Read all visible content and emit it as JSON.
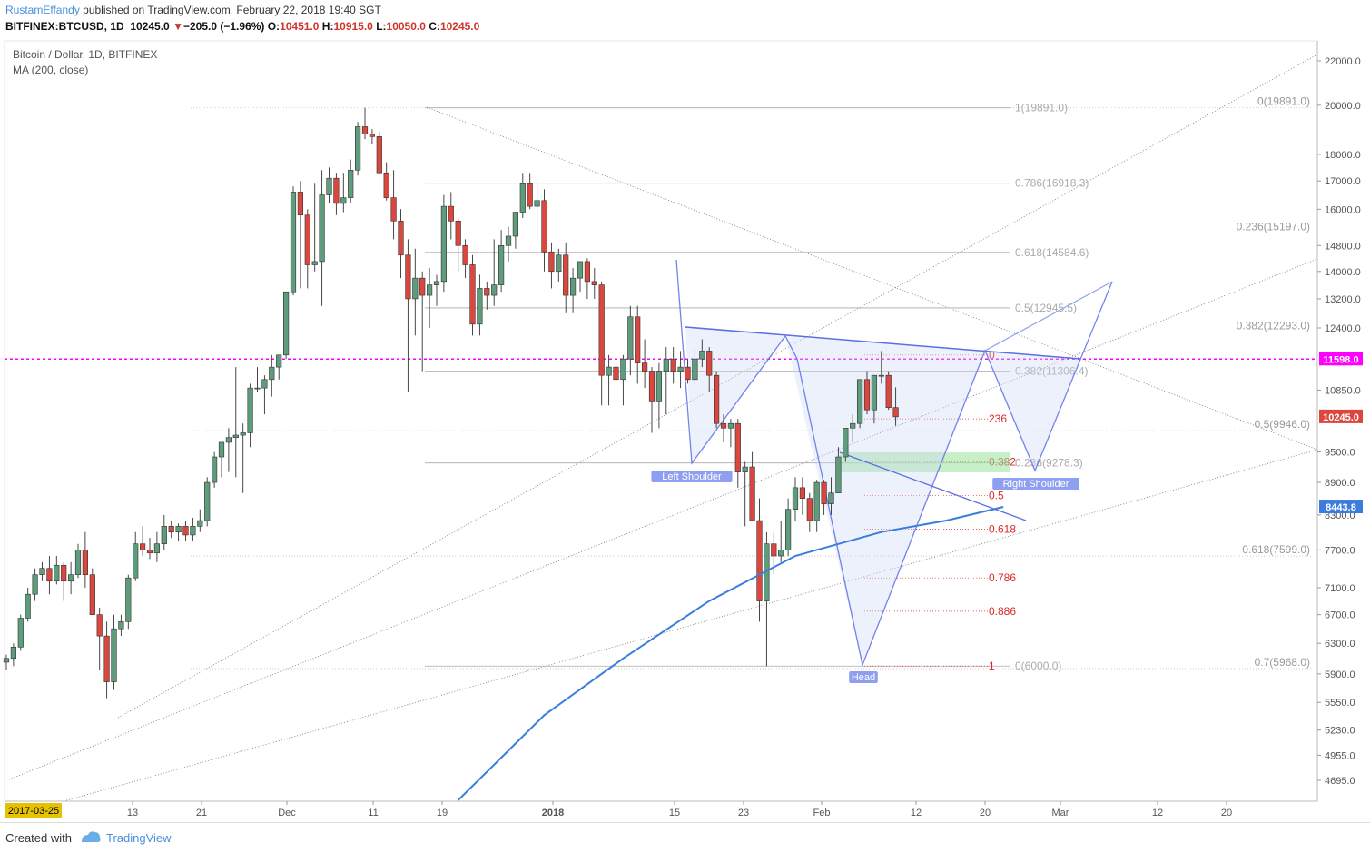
{
  "header": {
    "user": "RustamEffandy",
    "published": " published on TradingView.com, February 22, 2018 19:40 SGT",
    "symbol": "BITFINEX:BTCUSD, 1D",
    "last": "10245.0",
    "change": "−205.0 (−1.96%)",
    "o_label": "O:",
    "o_value": "10451.0",
    "h_label": "H:",
    "h_value": "10915.0",
    "l_label": "L:",
    "l_value": "10050.0",
    "c_label": "C:",
    "c_value": "10245.0"
  },
  "legend": {
    "title": "Bitcoin / Dollar, 1D, BITFINEX",
    "indicator": "MA (200, close)"
  },
  "footer": {
    "created": "Created with",
    "brand": "TradingView"
  },
  "colors": {
    "up": "#5f9c7c",
    "down": "#d9473e",
    "ma": "#3b7ddd",
    "pattern": "#5b6ee8",
    "alert": "#ff00ff",
    "fib_grey": "#aaaaaa",
    "fib_red": "#d92a2a"
  },
  "chart_data": {
    "type": "candlestick",
    "date_range": [
      "2017-10-06",
      "2018-02-22"
    ],
    "x_ticks": [
      "13",
      "21",
      "Dec",
      "11",
      "19",
      "2018",
      "15",
      "23",
      "Feb",
      "12",
      "20",
      "Mar",
      "12",
      "20"
    ],
    "date_badge": "2017-03-25",
    "y_ticks": [
      "22000.0",
      "20000.0",
      "18000.0",
      "17000.0",
      "16000.0",
      "14800.0",
      "14000.0",
      "13200.0",
      "12400.0",
      "10850.0",
      "9500.0",
      "8900.0",
      "8300.0",
      "7700.0",
      "7100.0",
      "6700.0",
      "6300.0",
      "5900.0",
      "5550.0",
      "5230.0",
      "4955.0",
      "4695.0"
    ],
    "ylim": [
      4500,
      22800
    ],
    "scale": "log",
    "price_badges": [
      {
        "label": "11598.0",
        "value": 11598,
        "color": "#ff00ff"
      },
      {
        "label": "10245.0",
        "value": 10245,
        "color": "#d9473e"
      },
      {
        "label": "8443.8",
        "value": 8443.8,
        "color": "#3b7ddd"
      }
    ],
    "ohlc": [
      [
        6050,
        6150,
        5950,
        6100
      ],
      [
        6100,
        6300,
        6000,
        6250
      ],
      [
        6250,
        6700,
        6200,
        6650
      ],
      [
        6650,
        7100,
        6600,
        7000
      ],
      [
        7000,
        7400,
        6900,
        7300
      ],
      [
        7300,
        7500,
        7200,
        7400
      ],
      [
        7400,
        7600,
        7000,
        7200
      ],
      [
        7200,
        7600,
        7150,
        7450
      ],
      [
        7450,
        7500,
        6900,
        7200
      ],
      [
        7200,
        7500,
        7000,
        7300
      ],
      [
        7300,
        7800,
        7250,
        7700
      ],
      [
        7700,
        8000,
        7100,
        7300
      ],
      [
        7300,
        7400,
        6800,
        6700
      ],
      [
        6700,
        6800,
        5950,
        6400
      ],
      [
        6400,
        6600,
        5600,
        5800
      ],
      [
        5800,
        6700,
        5700,
        6500
      ],
      [
        6500,
        6700,
        6400,
        6600
      ],
      [
        6600,
        7300,
        6500,
        7250
      ],
      [
        7250,
        8000,
        7200,
        7800
      ],
      [
        7800,
        8100,
        7600,
        7700
      ],
      [
        7700,
        7900,
        7550,
        7650
      ],
      [
        7650,
        8000,
        7500,
        7800
      ],
      [
        7800,
        8300,
        7700,
        8100
      ],
      [
        8100,
        8200,
        7900,
        8000
      ],
      [
        8000,
        8150,
        7850,
        8100
      ],
      [
        8100,
        8200,
        7850,
        7950
      ],
      [
        7950,
        8250,
        7850,
        8100
      ],
      [
        8100,
        8400,
        8000,
        8200
      ],
      [
        8200,
        9000,
        8100,
        8900
      ],
      [
        8900,
        9500,
        8800,
        9400
      ],
      [
        9400,
        9700,
        9000,
        9700
      ],
      [
        9700,
        10000,
        9100,
        9800
      ],
      [
        9800,
        11400,
        9000,
        9850
      ],
      [
        9850,
        10100,
        8700,
        9900
      ],
      [
        9900,
        11000,
        9600,
        10900
      ],
      [
        10900,
        11400,
        10800,
        10900
      ],
      [
        10900,
        11200,
        10300,
        11100
      ],
      [
        11100,
        11700,
        10700,
        11400
      ],
      [
        11400,
        11700,
        11100,
        11700
      ],
      [
        11700,
        13300,
        11600,
        13400
      ],
      [
        13400,
        16800,
        13300,
        16600
      ],
      [
        16600,
        17000,
        13500,
        15800
      ],
      [
        15800,
        16000,
        13500,
        14200
      ],
      [
        14200,
        16900,
        14000,
        14300
      ],
      [
        14300,
        17400,
        13000,
        16500
      ],
      [
        16500,
        17500,
        16200,
        17100
      ],
      [
        17100,
        17300,
        15800,
        16200
      ],
      [
        16200,
        17300,
        15900,
        16400
      ],
      [
        16400,
        17800,
        16200,
        17400
      ],
      [
        17400,
        19300,
        17200,
        19100
      ],
      [
        19100,
        19891,
        18600,
        18800
      ],
      [
        18800,
        19000,
        18400,
        18700
      ],
      [
        18700,
        18900,
        17300,
        17300
      ],
      [
        17300,
        17700,
        16300,
        16400
      ],
      [
        16400,
        17400,
        15000,
        15600
      ],
      [
        15600,
        16000,
        13800,
        14500
      ],
      [
        14500,
        15000,
        10800,
        13200
      ],
      [
        13200,
        14700,
        12200,
        13800
      ],
      [
        13800,
        14000,
        11300,
        13300
      ],
      [
        13300,
        14100,
        12400,
        13600
      ],
      [
        13600,
        13900,
        13000,
        13700
      ],
      [
        13700,
        16500,
        13400,
        16100
      ],
      [
        16100,
        16600,
        15000,
        15600
      ],
      [
        15600,
        15700,
        14000,
        14800
      ],
      [
        14800,
        15000,
        13800,
        14200
      ],
      [
        14200,
        14500,
        12200,
        12500
      ],
      [
        12500,
        13900,
        12200,
        13500
      ],
      [
        13500,
        13700,
        12900,
        13300
      ],
      [
        13300,
        15000,
        13000,
        13600
      ],
      [
        13600,
        15300,
        13400,
        14800
      ],
      [
        14800,
        15400,
        14300,
        15100
      ],
      [
        15100,
        15900,
        14700,
        15900
      ],
      [
        15900,
        17300,
        15700,
        16900
      ],
      [
        16900,
        17300,
        16000,
        16100
      ],
      [
        16100,
        17100,
        15000,
        16300
      ],
      [
        16300,
        16700,
        14000,
        14600
      ],
      [
        14600,
        14900,
        13500,
        14000
      ],
      [
        14000,
        14700,
        13700,
        14500
      ],
      [
        14500,
        14900,
        12800,
        13300
      ],
      [
        13300,
        14100,
        12800,
        13800
      ],
      [
        13800,
        14300,
        13400,
        14300
      ],
      [
        14300,
        14400,
        13200,
        13700
      ],
      [
        13700,
        14100,
        13200,
        13600
      ],
      [
        13600,
        13700,
        10500,
        11200
      ],
      [
        11200,
        11700,
        10500,
        11400
      ],
      [
        11400,
        11500,
        10800,
        11100
      ],
      [
        11100,
        11700,
        10500,
        11600
      ],
      [
        11600,
        13000,
        11200,
        12700
      ],
      [
        12700,
        13000,
        11000,
        11500
      ],
      [
        11500,
        12100,
        10900,
        11300
      ],
      [
        11300,
        11400,
        9900,
        10600
      ],
      [
        10600,
        11500,
        10000,
        11300
      ],
      [
        11300,
        11900,
        10300,
        11600
      ],
      [
        11600,
        11900,
        11000,
        11300
      ],
      [
        11300,
        11800,
        10900,
        11400
      ],
      [
        11400,
        11600,
        11000,
        11100
      ],
      [
        11100,
        11900,
        11000,
        11600
      ],
      [
        11600,
        12100,
        11400,
        11800
      ],
      [
        11800,
        11900,
        10800,
        11200
      ],
      [
        11200,
        11300,
        10000,
        10100
      ],
      [
        10100,
        10300,
        9700,
        10000
      ],
      [
        10000,
        10200,
        9600,
        10100
      ],
      [
        10100,
        10200,
        8800,
        9100
      ],
      [
        9100,
        9300,
        8100,
        9200
      ],
      [
        9200,
        9500,
        8200,
        8200
      ],
      [
        8200,
        8600,
        6600,
        6900
      ],
      [
        6900,
        8000,
        6000,
        7800
      ],
      [
        7800,
        8000,
        7300,
        7600
      ],
      [
        7600,
        8200,
        7500,
        7700
      ],
      [
        7700,
        8600,
        7600,
        8400
      ],
      [
        8400,
        9000,
        8200,
        8800
      ],
      [
        8800,
        9000,
        8300,
        8600
      ],
      [
        8600,
        8700,
        8000,
        8200
      ],
      [
        8200,
        8950,
        8000,
        8900
      ],
      [
        8900,
        8950,
        8300,
        8500
      ],
      [
        8500,
        9000,
        8300,
        8700
      ],
      [
        8700,
        9600,
        8700,
        9400
      ],
      [
        9400,
        10000,
        9300,
        10000
      ],
      [
        10000,
        10300,
        9700,
        10100
      ],
      [
        10100,
        11100,
        10000,
        11100
      ],
      [
        11100,
        11300,
        10300,
        10400
      ],
      [
        10400,
        11200,
        10100,
        11200
      ],
      [
        11200,
        11800,
        11000,
        11200
      ],
      [
        11200,
        11300,
        10400,
        10450
      ],
      [
        10451,
        10915,
        10050,
        10245
      ]
    ],
    "ma_200": [
      {
        "date": "2017-12-08",
        "value": 4500
      },
      {
        "date": "2017-12-20",
        "value": 5400
      },
      {
        "date": "2017-12-31",
        "value": 6100
      },
      {
        "date": "2018-01-12",
        "value": 6900
      },
      {
        "date": "2018-01-24",
        "value": 7600
      },
      {
        "date": "2018-02-05",
        "value": 8000
      },
      {
        "date": "2018-02-14",
        "value": 8200
      },
      {
        "date": "2018-02-22",
        "value": 8443.8
      }
    ],
    "fib_grey_main": [
      {
        "label": "0(19891.0)",
        "value": 19891
      },
      {
        "label": "0.236(15197.0)",
        "value": 15197
      },
      {
        "label": "0.382(12293.0)",
        "value": 12293
      },
      {
        "label": "0.5(9946.0)",
        "value": 9946
      },
      {
        "label": "0.618(7599.0)",
        "value": 7599
      },
      {
        "label": "0.7(5968.0)",
        "value": 5968
      }
    ],
    "fib_grey_retrace": [
      {
        "label": "1(19891.0)",
        "value": 19891
      },
      {
        "label": "0.786(16918.3)",
        "value": 16918.3
      },
      {
        "label": "0.618(14584.6)",
        "value": 14584.6
      },
      {
        "label": "0.5(12945.5)",
        "value": 12945.5
      },
      {
        "label": "0.382(11306.4)",
        "value": 11306.4
      },
      {
        "label": "0.236(9278.3)",
        "value": 9278.3
      },
      {
        "label": "0(6000.0)",
        "value": 6000
      }
    ],
    "fib_red": [
      {
        "label": "0",
        "value": 11700
      },
      {
        "label": "236",
        "value": 10200
      },
      {
        "label": "0.382",
        "value": 9300
      },
      {
        "label": "0.5",
        "value": 8650
      },
      {
        "label": "0.618",
        "value": 8050
      },
      {
        "label": "0.786",
        "value": 7250
      },
      {
        "label": "0.886",
        "value": 6750
      },
      {
        "label": "1",
        "value": 6000
      }
    ],
    "annotations": [
      "Left Shoulder",
      "Head",
      "Right Shoulder"
    ]
  }
}
